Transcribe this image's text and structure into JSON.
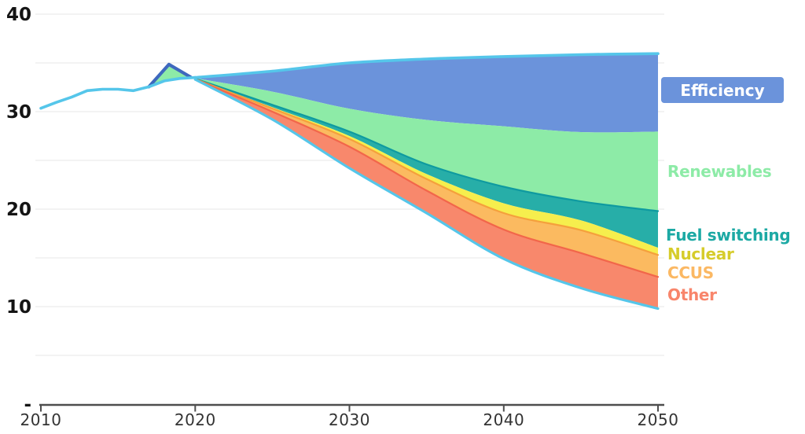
{
  "chart_data": {
    "type": "area",
    "title": "",
    "description_visible_text_only": true,
    "x_axis": {
      "min": 2010,
      "max": 2050,
      "tick_years": [
        2010,
        2020,
        2030,
        2040,
        2050
      ],
      "tick_labels": [
        "2010",
        "2020",
        "2030",
        "2040",
        "2050"
      ]
    },
    "y_axis": {
      "min": 0,
      "max": 40,
      "gridline_step": 5,
      "gridline_values": [
        5,
        10,
        15,
        20,
        25,
        30,
        35,
        40
      ],
      "ticks": [
        {
          "value": 40,
          "label": "40"
        },
        {
          "value": 30,
          "label": "30"
        },
        {
          "value": 20,
          "label": "20"
        },
        {
          "value": 10,
          "label": "10"
        },
        {
          "value": 0,
          "label": "-"
        }
      ]
    },
    "historical": {
      "color": "#55C6EA",
      "points": [
        [
          2010,
          30.35
        ],
        [
          2011,
          30.95
        ],
        [
          2012,
          31.5
        ],
        [
          2013,
          32.15
        ],
        [
          2014,
          32.3
        ],
        [
          2015,
          32.3
        ],
        [
          2016,
          32.15
        ],
        [
          2017,
          32.55
        ],
        [
          2018,
          33.15
        ],
        [
          2019,
          33.4
        ],
        [
          2020,
          33.5
        ]
      ]
    },
    "peak_artifact": {
      "stroke": "#3E68BE",
      "fill": "#8DEBA7",
      "points": [
        [
          2017,
          32.55
        ],
        [
          2018.3,
          34.85
        ],
        [
          2019.7,
          33.55
        ]
      ]
    },
    "x_years": [
      2020,
      2025,
      2030,
      2035,
      2040,
      2045,
      2050
    ],
    "top_line": {
      "color": "#55C6EA",
      "values": [
        33.5,
        34.15,
        35.0,
        35.4,
        35.65,
        35.85,
        35.95
      ]
    },
    "bands": [
      {
        "name": "Efficiency",
        "fill": "#6B93DB",
        "lower": [
          33.42,
          32.05,
          30.3,
          29.15,
          28.5,
          27.9,
          27.95
        ]
      },
      {
        "name": "Renewables",
        "fill": "#8DEBA7",
        "lower": [
          33.38,
          30.7,
          27.95,
          24.6,
          22.3,
          20.8,
          19.8
        ]
      },
      {
        "name": "Fuel switching",
        "fill": "#27AEA8",
        "top_stroke": "#0F9AA0",
        "lower": [
          33.36,
          30.45,
          27.5,
          23.6,
          20.6,
          18.85,
          16.05
        ]
      },
      {
        "name": "Nuclear",
        "fill": "#F6EE4D",
        "lower": [
          33.34,
          30.32,
          27.2,
          23.1,
          19.6,
          17.85,
          15.3
        ]
      },
      {
        "name": "CCUS",
        "fill": "#FBBA60",
        "top_stroke": "#F5A03C",
        "lower": [
          33.32,
          30.0,
          26.4,
          21.9,
          17.9,
          15.5,
          13.05
        ]
      },
      {
        "name": "Other",
        "fill": "#F8886C",
        "top_stroke": "#F2664A",
        "bottom_stroke": "#55C6EA",
        "lower": [
          33.3,
          29.2,
          24.2,
          19.6,
          14.9,
          11.9,
          9.8
        ]
      }
    ],
    "axis_line_color": "#4E4E4E",
    "gridline_color": "#ECECEC"
  },
  "legend": {
    "items": [
      {
        "label": "Efficiency",
        "text_color": "#FFFFFF",
        "badge_color": "#6B93DB"
      },
      {
        "label": "Renewables",
        "text_color": "#8DEBA7"
      },
      {
        "label": "Fuel switching",
        "text_color": "#1CA9A4"
      },
      {
        "label": "Nuclear",
        "text_color": "#D6CC2B"
      },
      {
        "label": "CCUS",
        "text_color": "#FBB863"
      },
      {
        "label": "Other",
        "text_color": "#F8856B"
      }
    ]
  }
}
